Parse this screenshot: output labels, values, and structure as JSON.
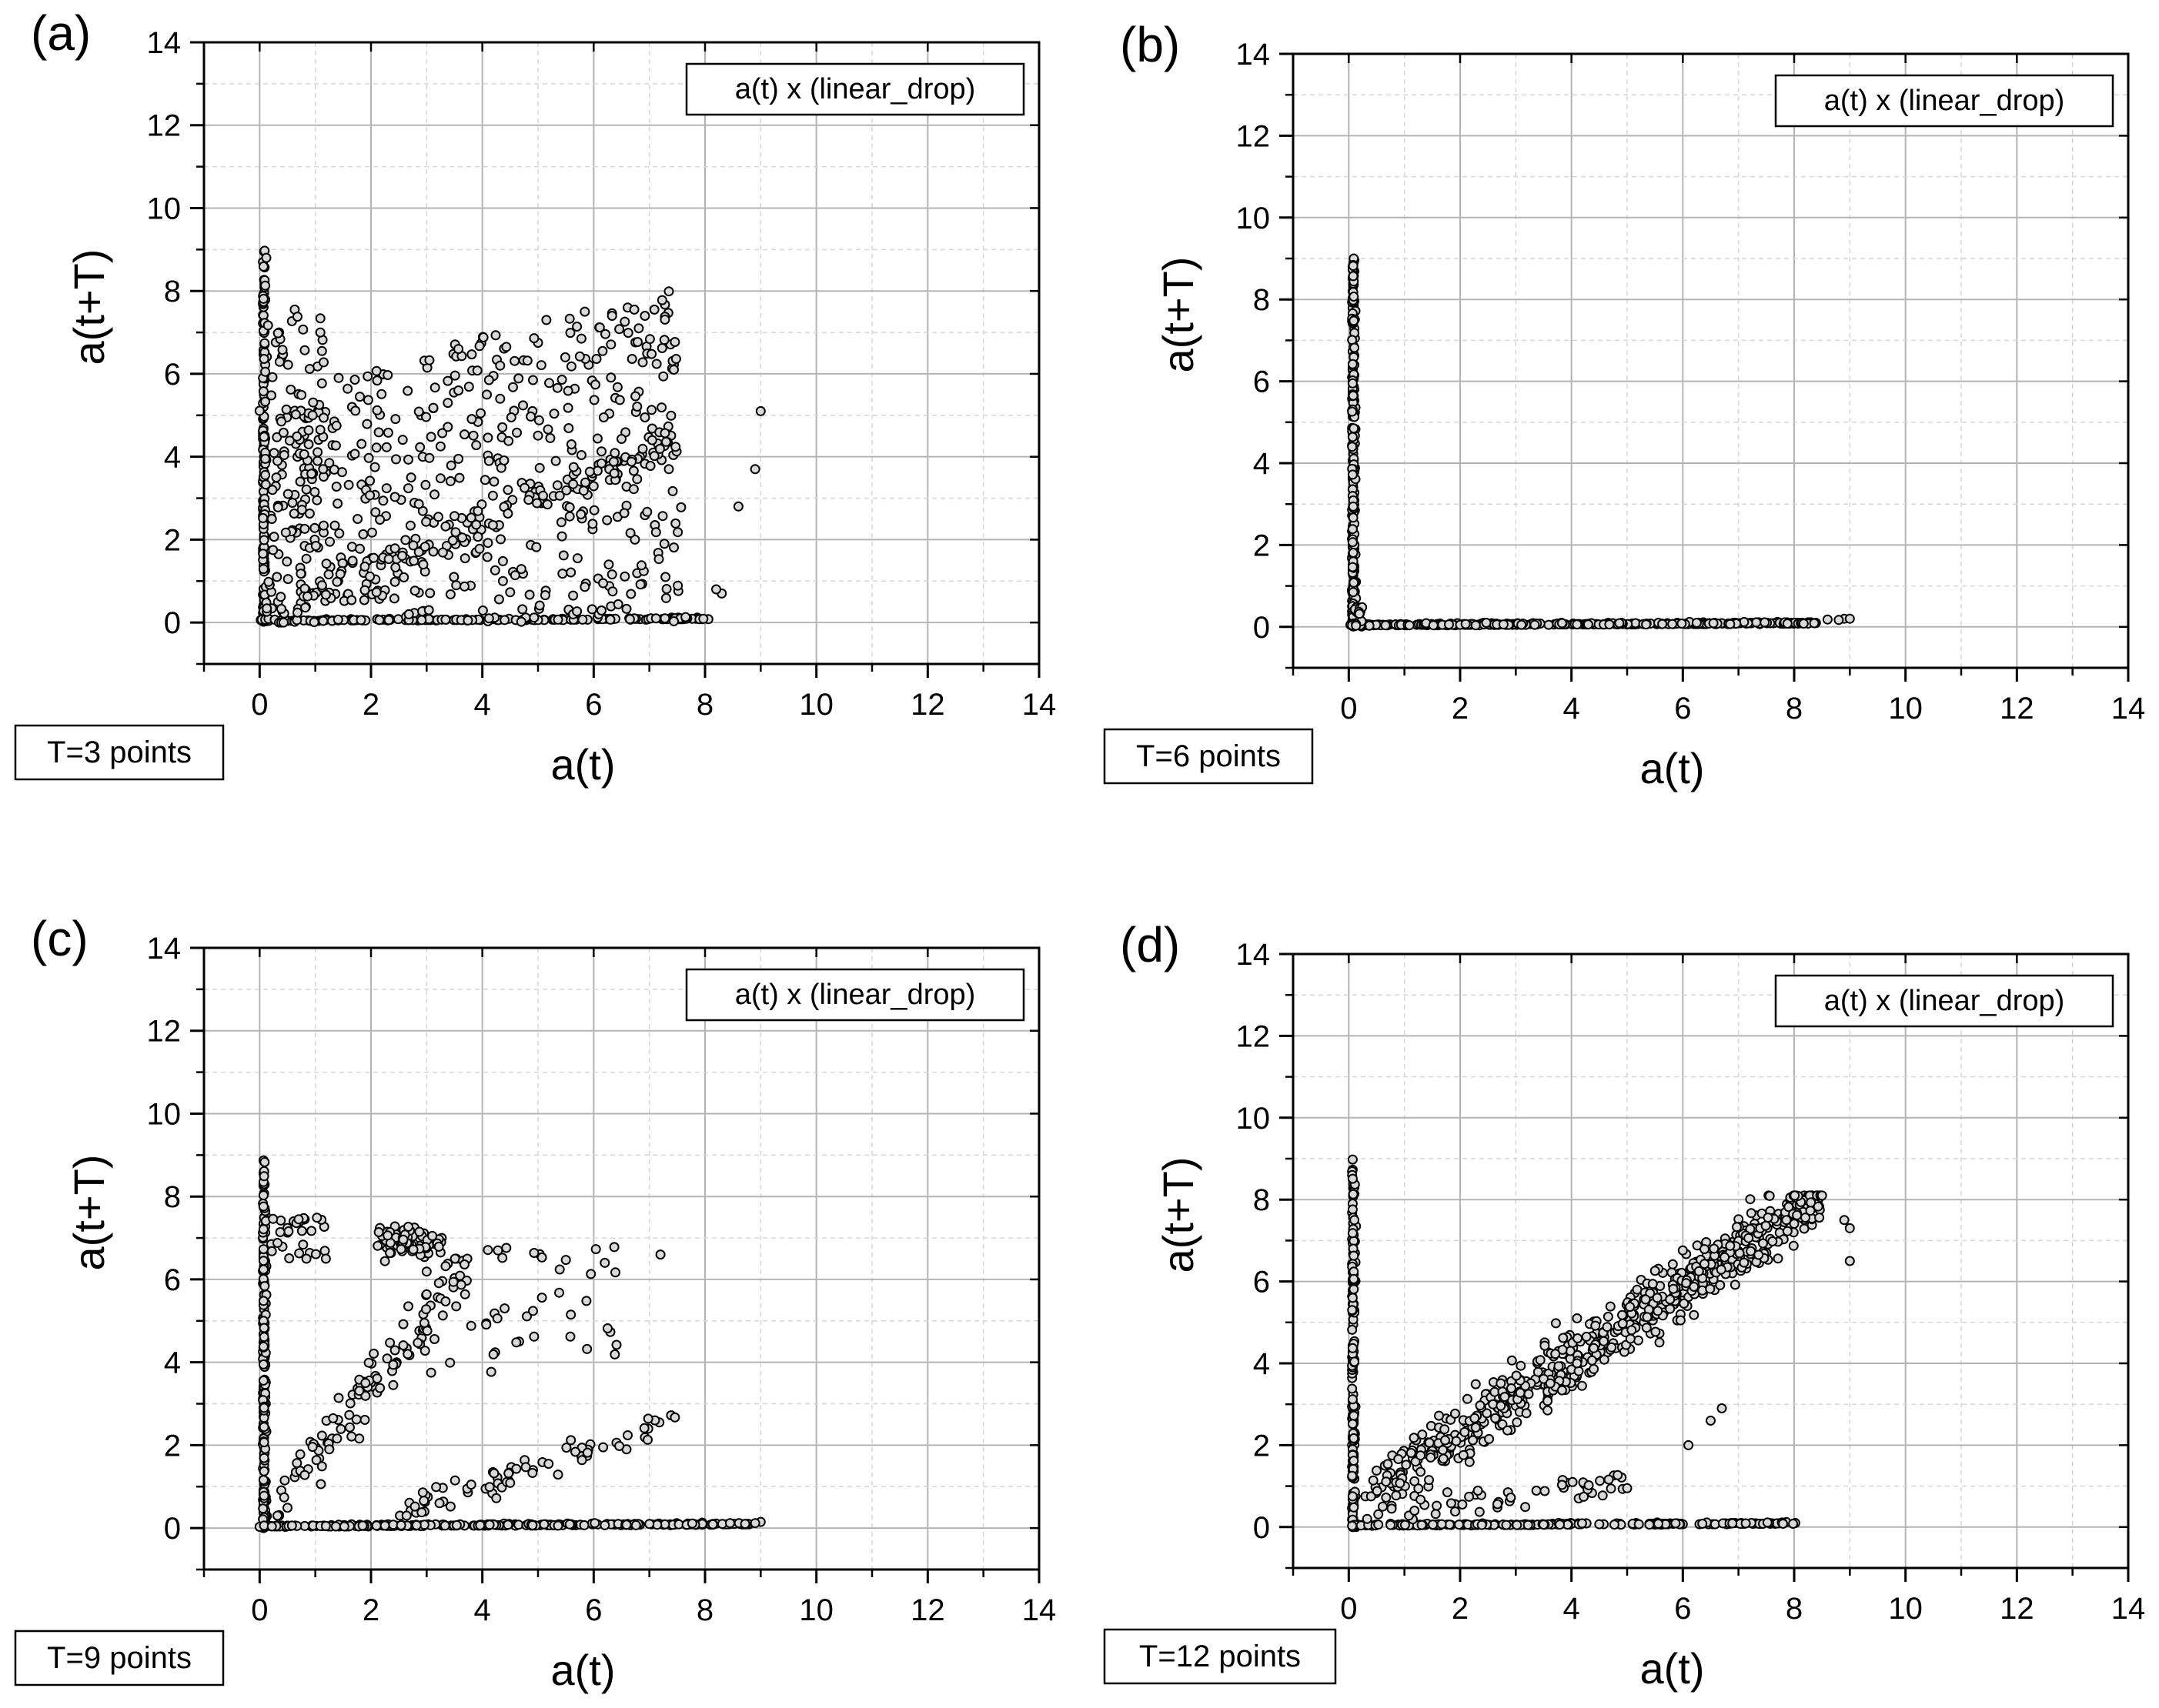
{
  "chart_data": [
    {
      "type": "scatter",
      "panel_label": "(a)",
      "legend": "a(t) x (linear_drop)",
      "note": "T=3 points",
      "xlabel": "a(t)",
      "ylabel": "a(t+T)",
      "xlim": [
        -1,
        14
      ],
      "ylim": [
        -1,
        14
      ],
      "xticks": [
        0,
        2,
        4,
        6,
        8,
        10,
        12,
        14
      ],
      "yticks": [
        0,
        2,
        4,
        6,
        8,
        10,
        12,
        14
      ],
      "grid": true,
      "legend_position": "top-right",
      "note_position": "bottom-left",
      "series": [
        {
          "name": "a(t) x (linear_drop)",
          "pattern": "diffuse",
          "x": [],
          "y": []
        }
      ]
    },
    {
      "type": "scatter",
      "panel_label": "(b)",
      "legend": "a(t) x (linear_drop)",
      "note": "T=6 points",
      "xlabel": "a(t)",
      "ylabel": "a(t+T)",
      "xlim": [
        -1,
        14
      ],
      "ylim": [
        -1,
        14
      ],
      "xticks": [
        0,
        2,
        4,
        6,
        8,
        10,
        12,
        14
      ],
      "yticks": [
        0,
        2,
        4,
        6,
        8,
        10,
        12,
        14
      ],
      "grid": true,
      "legend_position": "top-right",
      "note_position": "bottom-left",
      "series": [
        {
          "name": "a(t) x (linear_drop)",
          "pattern": "l-shape",
          "x": [],
          "y": []
        }
      ]
    },
    {
      "type": "scatter",
      "panel_label": "(c)",
      "legend": "a(t) x (linear_drop)",
      "note": "T=9 points",
      "xlabel": "a(t)",
      "ylabel": "a(t+T)",
      "xlim": [
        -1,
        14
      ],
      "ylim": [
        -1,
        14
      ],
      "xticks": [
        0,
        2,
        4,
        6,
        8,
        10,
        12,
        14
      ],
      "yticks": [
        0,
        2,
        4,
        6,
        8,
        10,
        12,
        14
      ],
      "grid": true,
      "legend_position": "top-right",
      "note_position": "bottom-left",
      "series": [
        {
          "name": "a(t) x (linear_drop)",
          "pattern": "clusters",
          "x": [],
          "y": []
        }
      ]
    },
    {
      "type": "scatter",
      "panel_label": "(d)",
      "legend": "a(t) x (linear_drop)",
      "note": "T=12 points",
      "xlabel": "a(t)",
      "ylabel": "a(t+T)",
      "xlim": [
        -1,
        14
      ],
      "ylim": [
        -1,
        14
      ],
      "xticks": [
        0,
        2,
        4,
        6,
        8,
        10,
        12,
        14
      ],
      "yticks": [
        0,
        2,
        4,
        6,
        8,
        10,
        12,
        14
      ],
      "grid": true,
      "legend_position": "top-right",
      "note_position": "bottom-left",
      "series": [
        {
          "name": "a(t) x (linear_drop)",
          "pattern": "diagonal",
          "x": [],
          "y": []
        }
      ]
    }
  ]
}
